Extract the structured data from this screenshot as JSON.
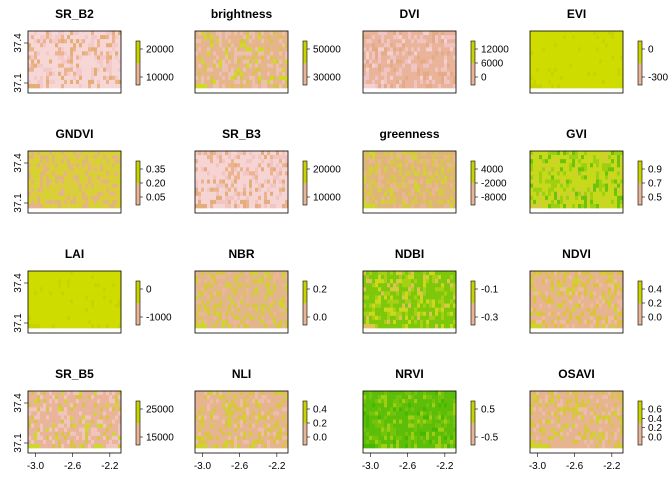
{
  "chart_data": [
    {
      "type": "heatmap",
      "title": "SR_B2",
      "palette": [
        "#f7d6d6",
        "#f3c9c9",
        "#ebb48e",
        "#e3ae78"
      ],
      "legend_ticks": [
        "20000",
        "10000"
      ],
      "xticks": [],
      "yticks": [
        "37.4",
        "37.1"
      ]
    },
    {
      "type": "heatmap",
      "title": "brightness",
      "palette": [
        "#e6b58c",
        "#ecc0b0",
        "#d8c44c",
        "#cddc1e"
      ],
      "legend_ticks": [
        "50000",
        "30000"
      ],
      "xticks": [],
      "yticks": []
    },
    {
      "type": "heatmap",
      "title": "DVI",
      "palette": [
        "#eab49a",
        "#f1c4c4",
        "#e3ab86",
        "#f4d0d0"
      ],
      "legend_ticks": [
        "12000",
        "6000",
        "0"
      ],
      "xticks": [],
      "yticks": []
    },
    {
      "type": "heatmap",
      "title": "EVI",
      "palette": [
        "#cfdc00",
        "#cfdc00",
        "#cfdc00",
        "#c8d400"
      ],
      "legend_ticks": [
        "0",
        "-300"
      ],
      "xticks": [],
      "yticks": []
    },
    {
      "type": "heatmap",
      "title": "GNDVI",
      "palette": [
        "#dccd3c",
        "#e1b779",
        "#cfd826",
        "#e5b48c"
      ],
      "legend_ticks": [
        "0.35",
        "0.20",
        "0.05"
      ],
      "xticks": [],
      "yticks": [
        "37.4",
        "37.1"
      ]
    },
    {
      "type": "heatmap",
      "title": "SR_B3",
      "palette": [
        "#f6d4d4",
        "#f1c5c2",
        "#ebb48e",
        "#e4ae7c"
      ],
      "legend_ticks": [
        "20000",
        "10000"
      ],
      "xticks": [],
      "yticks": []
    },
    {
      "type": "heatmap",
      "title": "greenness",
      "palette": [
        "#e0b678",
        "#d8c84a",
        "#e9b592",
        "#cfd82a"
      ],
      "legend_ticks": [
        "4000",
        "-2000",
        "-8000"
      ],
      "xticks": [],
      "yticks": []
    },
    {
      "type": "heatmap",
      "title": "GVI",
      "palette": [
        "#c8d81a",
        "#9ed012",
        "#6cc30a",
        "#d3cc3c"
      ],
      "legend_ticks": [
        "0.9",
        "0.7",
        "0.5"
      ],
      "xticks": [],
      "yticks": []
    },
    {
      "type": "heatmap",
      "title": "LAI",
      "palette": [
        "#cfdc00",
        "#cfdc00",
        "#cfdc00",
        "#c8d400"
      ],
      "legend_ticks": [
        "0",
        "-1000"
      ],
      "xticks": [],
      "yticks": [
        "37.4",
        "37.1"
      ]
    },
    {
      "type": "heatmap",
      "title": "NBR",
      "palette": [
        "#e3b58a",
        "#d7c844",
        "#eab59a",
        "#cdd62c"
      ],
      "legend_ticks": [
        "0.2",
        "0.0"
      ],
      "xticks": [],
      "yticks": []
    },
    {
      "type": "heatmap",
      "title": "NDBI",
      "palette": [
        "#7ec80c",
        "#a6d014",
        "#cbd81c",
        "#e0c05a"
      ],
      "legend_ticks": [
        "-0.1",
        "-0.3"
      ],
      "xticks": [],
      "yticks": []
    },
    {
      "type": "heatmap",
      "title": "NDVI",
      "palette": [
        "#e6b48e",
        "#dcc23e",
        "#ecbba0",
        "#cfd42c"
      ],
      "legend_ticks": [
        "0.4",
        "0.2",
        "0.0"
      ],
      "xticks": [],
      "yticks": []
    },
    {
      "type": "heatmap",
      "title": "SR_B5",
      "palette": [
        "#eab49a",
        "#f0c6bc",
        "#d8c546",
        "#cfd82c"
      ],
      "legend_ticks": [
        "25000",
        "15000"
      ],
      "xticks": [
        "-3.0",
        "-2.6",
        "-2.2"
      ],
      "yticks": [
        "37.4",
        "37.1"
      ]
    },
    {
      "type": "heatmap",
      "title": "NLI",
      "palette": [
        "#e6b48e",
        "#d9c444",
        "#edbcab",
        "#cfd42c"
      ],
      "legend_ticks": [
        "0.4",
        "0.2",
        "0.0"
      ],
      "xticks": [
        "-3.0",
        "-2.6",
        "-2.2"
      ],
      "yticks": []
    },
    {
      "type": "heatmap",
      "title": "NRVI",
      "palette": [
        "#5cbe08",
        "#74c40c",
        "#9fce12",
        "#46b804"
      ],
      "legend_ticks": [
        "0.5",
        "-0.5"
      ],
      "xticks": [
        "-3.0",
        "-2.6",
        "-2.2"
      ],
      "yticks": []
    },
    {
      "type": "heatmap",
      "title": "OSAVI",
      "palette": [
        "#e6b48e",
        "#dac444",
        "#edbca8",
        "#cfd42c"
      ],
      "legend_ticks": [
        "0.6",
        "0.4",
        "0.2",
        "0.0"
      ],
      "xticks": [
        "-3.0",
        "-2.6",
        "-2.2"
      ],
      "yticks": []
    }
  ]
}
